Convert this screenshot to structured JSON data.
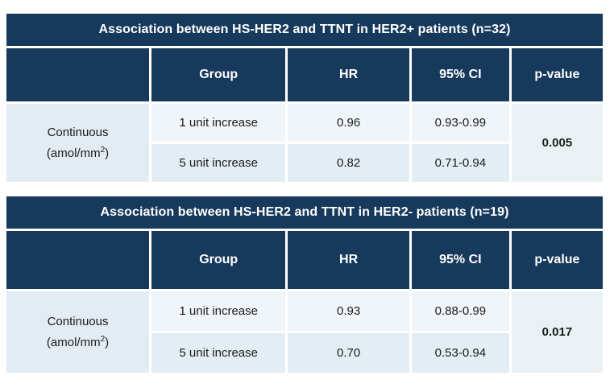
{
  "colors": {
    "header_navy": "#17395B",
    "header_text": "#ffffff",
    "row_band_light": "#eff5f9",
    "row_band_dark": "#e2edf4",
    "label_cell_bg": "#e4ecf3",
    "pvalue_cell_bg": "#e9f1f5",
    "body_text": "#1c1c1c"
  },
  "tables": [
    {
      "title": "Association between HS-HER2 and TTNT in HER2+ patients (n=32)",
      "columns": [
        "",
        "Group",
        "HR",
        "95% CI",
        "p-value"
      ],
      "row_label": {
        "line1": "Continuous",
        "line2_pre": "(amol/mm",
        "line2_sup": "2",
        "line2_post": ")"
      },
      "rows": [
        {
          "group": "1 unit increase",
          "hr": "0.96",
          "ci": "0.93-0.99"
        },
        {
          "group": "5 unit increase",
          "hr": "0.82",
          "ci": "0.71-0.94"
        }
      ],
      "p_value": "0.005"
    },
    {
      "title": "Association between HS-HER2 and TTNT in HER2- patients (n=19)",
      "columns": [
        "",
        "Group",
        "HR",
        "95% CI",
        "p-value"
      ],
      "row_label": {
        "line1": "Continuous",
        "line2_pre": "(amol/mm",
        "line2_sup": "2",
        "line2_post": ")"
      },
      "rows": [
        {
          "group": "1 unit increase",
          "hr": "0.93",
          "ci": "0.88-0.99"
        },
        {
          "group": "5 unit increase",
          "hr": "0.70",
          "ci": "0.53-0.94"
        }
      ],
      "p_value": "0.017"
    }
  ]
}
